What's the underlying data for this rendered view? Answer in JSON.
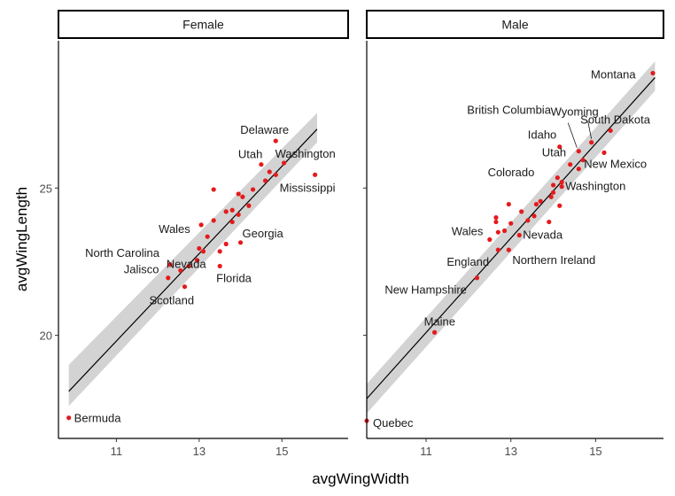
{
  "chart_data": {
    "type": "scatter",
    "xlabel": "avgWingWidth",
    "ylabel": "avgWingLength",
    "xlim": [
      9.6,
      16.6
    ],
    "ylim": [
      16.5,
      30.0
    ],
    "x_ticks": [
      11,
      13,
      15
    ],
    "y_ticks": [
      20,
      25
    ],
    "x_tick_labels": [
      "11",
      "13",
      "15"
    ],
    "y_tick_labels": [
      "20",
      "25"
    ],
    "grid": false,
    "colors": {
      "point": "#e41a1c",
      "fit": "#000000",
      "band": "#c8c8c8"
    },
    "panels": [
      {
        "name": "Female",
        "fit": {
          "x": [
            9.85,
            15.85
          ],
          "y": [
            18.1,
            27.0
          ],
          "se_lo": [
            17.6,
            26.55
          ],
          "se_hi": [
            19.0,
            27.55
          ]
        },
        "points": [
          {
            "x": 9.85,
            "y": 17.2,
            "label": "Bermuda"
          },
          {
            "x": 15.8,
            "y": 25.45,
            "label": "Mississippi"
          },
          {
            "x": 14.85,
            "y": 26.6,
            "label": "Delaware"
          },
          {
            "x": 15.05,
            "y": 25.85,
            "label": "Washington"
          },
          {
            "x": 14.5,
            "y": 25.8,
            "label": "Utah"
          },
          {
            "x": 14.0,
            "y": 23.15,
            "label": "Georgia"
          },
          {
            "x": 13.05,
            "y": 23.75,
            "label": "Wales"
          },
          {
            "x": 12.3,
            "y": 22.4,
            "label": "North Carolina"
          },
          {
            "x": 12.55,
            "y": 22.2,
            "label": "Nevada"
          },
          {
            "x": 12.25,
            "y": 21.95,
            "label": "Jalisco"
          },
          {
            "x": 13.5,
            "y": 22.35,
            "label": "Florida"
          },
          {
            "x": 12.65,
            "y": 21.65,
            "label": "Scotland"
          },
          {
            "x": 13.35,
            "y": 24.95,
            "label": ""
          },
          {
            "x": 14.7,
            "y": 25.55,
            "label": ""
          },
          {
            "x": 14.6,
            "y": 25.25,
            "label": ""
          },
          {
            "x": 14.85,
            "y": 25.45,
            "label": ""
          },
          {
            "x": 14.3,
            "y": 24.95,
            "label": ""
          },
          {
            "x": 13.95,
            "y": 24.8,
            "label": ""
          },
          {
            "x": 14.05,
            "y": 24.7,
            "label": ""
          },
          {
            "x": 14.2,
            "y": 24.4,
            "label": ""
          },
          {
            "x": 13.65,
            "y": 24.2,
            "label": ""
          },
          {
            "x": 13.8,
            "y": 24.25,
            "label": ""
          },
          {
            "x": 13.95,
            "y": 24.1,
            "label": ""
          },
          {
            "x": 13.35,
            "y": 23.9,
            "label": ""
          },
          {
            "x": 13.8,
            "y": 23.85,
            "label": ""
          },
          {
            "x": 13.2,
            "y": 23.35,
            "label": ""
          },
          {
            "x": 13.65,
            "y": 23.1,
            "label": ""
          },
          {
            "x": 13.5,
            "y": 22.85,
            "label": ""
          },
          {
            "x": 13.1,
            "y": 22.85,
            "label": ""
          },
          {
            "x": 13.0,
            "y": 22.95,
            "label": ""
          },
          {
            "x": 12.95,
            "y": 22.55,
            "label": ""
          },
          {
            "x": 12.75,
            "y": 22.35,
            "label": ""
          }
        ]
      },
      {
        "name": "Male",
        "fit": {
          "x": [
            9.6,
            16.4
          ],
          "y": [
            17.85,
            28.75
          ],
          "se_lo": [
            17.35,
            28.3
          ],
          "se_hi": [
            18.35,
            29.3
          ]
        },
        "points": [
          {
            "x": 9.6,
            "y": 17.1,
            "label": "Quebec"
          },
          {
            "x": 11.2,
            "y": 20.1,
            "label": "Maine"
          },
          {
            "x": 16.35,
            "y": 28.9,
            "label": "Montana"
          },
          {
            "x": 14.9,
            "y": 26.55,
            "label": "Wyoming"
          },
          {
            "x": 15.35,
            "y": 26.95,
            "label": "South Dakota"
          },
          {
            "x": 14.6,
            "y": 26.25,
            "label": "British Columbia"
          },
          {
            "x": 14.15,
            "y": 26.4,
            "label": "Idaho"
          },
          {
            "x": 14.4,
            "y": 25.8,
            "label": "Utah"
          },
          {
            "x": 14.6,
            "y": 25.65,
            "label": "New Mexico"
          },
          {
            "x": 14.0,
            "y": 25.1,
            "label": "Colorado"
          },
          {
            "x": 14.2,
            "y": 25.05,
            "label": "Washington"
          },
          {
            "x": 12.5,
            "y": 23.25,
            "label": "Wales"
          },
          {
            "x": 13.2,
            "y": 23.4,
            "label": "Nevada"
          },
          {
            "x": 12.7,
            "y": 22.9,
            "label": "England"
          },
          {
            "x": 12.95,
            "y": 22.9,
            "label": "Northern Ireland"
          },
          {
            "x": 12.2,
            "y": 21.95,
            "label": "New Hampshire"
          },
          {
            "x": 15.2,
            "y": 26.2,
            "label": ""
          },
          {
            "x": 14.7,
            "y": 25.95,
            "label": ""
          },
          {
            "x": 14.1,
            "y": 25.35,
            "label": ""
          },
          {
            "x": 14.2,
            "y": 25.2,
            "label": ""
          },
          {
            "x": 14.0,
            "y": 24.85,
            "label": ""
          },
          {
            "x": 13.7,
            "y": 24.55,
            "label": ""
          },
          {
            "x": 13.6,
            "y": 24.45,
            "label": ""
          },
          {
            "x": 13.95,
            "y": 24.7,
            "label": ""
          },
          {
            "x": 14.15,
            "y": 24.4,
            "label": ""
          },
          {
            "x": 12.95,
            "y": 24.45,
            "label": ""
          },
          {
            "x": 13.25,
            "y": 24.2,
            "label": ""
          },
          {
            "x": 13.55,
            "y": 24.05,
            "label": ""
          },
          {
            "x": 12.65,
            "y": 24.0,
            "label": ""
          },
          {
            "x": 12.65,
            "y": 23.85,
            "label": ""
          },
          {
            "x": 13.4,
            "y": 23.9,
            "label": ""
          },
          {
            "x": 13.9,
            "y": 23.85,
            "label": ""
          },
          {
            "x": 13.0,
            "y": 23.8,
            "label": ""
          },
          {
            "x": 12.85,
            "y": 23.55,
            "label": ""
          },
          {
            "x": 12.7,
            "y": 23.5,
            "label": ""
          }
        ]
      }
    ]
  }
}
